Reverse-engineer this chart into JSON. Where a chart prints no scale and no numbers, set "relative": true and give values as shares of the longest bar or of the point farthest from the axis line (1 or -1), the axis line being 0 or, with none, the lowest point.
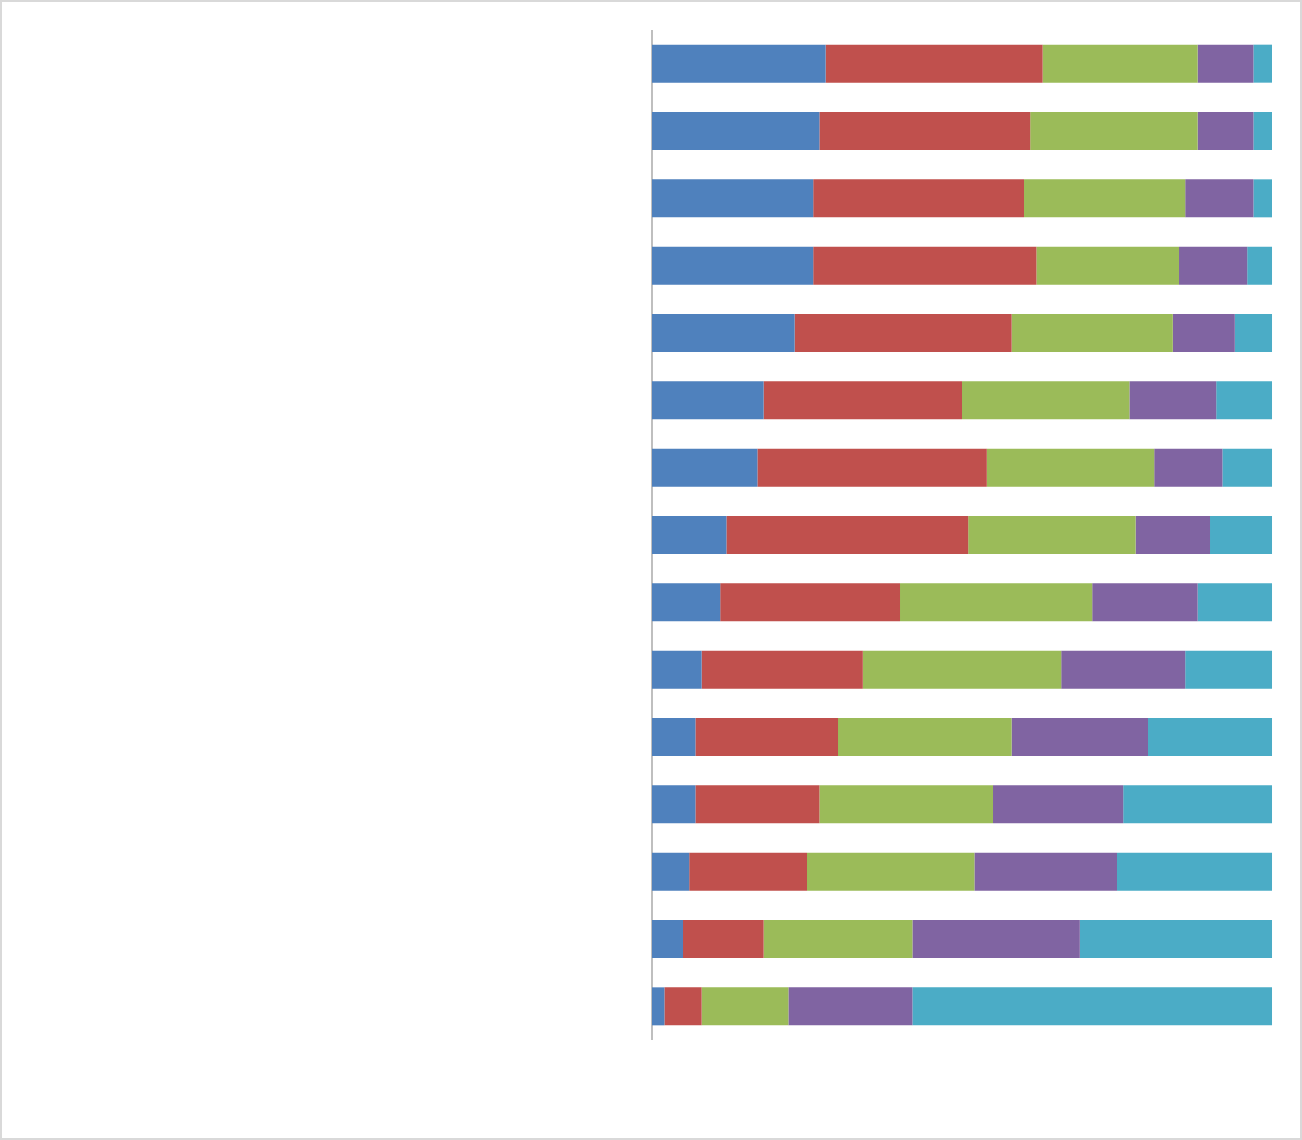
{
  "chart_data": {
    "type": "bar",
    "orientation": "horizontal",
    "stacked": true,
    "relative": true,
    "categories": [
      null,
      null,
      null,
      null,
      null,
      null,
      null,
      null,
      null,
      null,
      null,
      null,
      null,
      null,
      null
    ],
    "series": [
      {
        "color": "#4f81bd",
        "values": [
          0.28,
          0.27,
          0.26,
          0.26,
          0.23,
          0.18,
          0.17,
          0.12,
          0.11,
          0.08,
          0.07,
          0.07,
          0.06,
          0.05,
          0.02
        ]
      },
      {
        "color": "#c0504d",
        "values": [
          0.35,
          0.34,
          0.34,
          0.36,
          0.35,
          0.32,
          0.37,
          0.39,
          0.29,
          0.26,
          0.23,
          0.2,
          0.19,
          0.13,
          0.06
        ]
      },
      {
        "color": "#9bbb59",
        "values": [
          0.25,
          0.27,
          0.26,
          0.23,
          0.26,
          0.27,
          0.27,
          0.27,
          0.31,
          0.32,
          0.28,
          0.28,
          0.27,
          0.24,
          0.14
        ]
      },
      {
        "color": "#8064a2",
        "values": [
          0.09,
          0.09,
          0.11,
          0.11,
          0.1,
          0.14,
          0.11,
          0.12,
          0.17,
          0.2,
          0.22,
          0.21,
          0.23,
          0.27,
          0.2
        ]
      },
      {
        "color": "#4bacc6",
        "values": [
          0.03,
          0.03,
          0.03,
          0.04,
          0.06,
          0.09,
          0.08,
          0.1,
          0.12,
          0.14,
          0.2,
          0.24,
          0.25,
          0.31,
          0.58
        ]
      }
    ]
  }
}
